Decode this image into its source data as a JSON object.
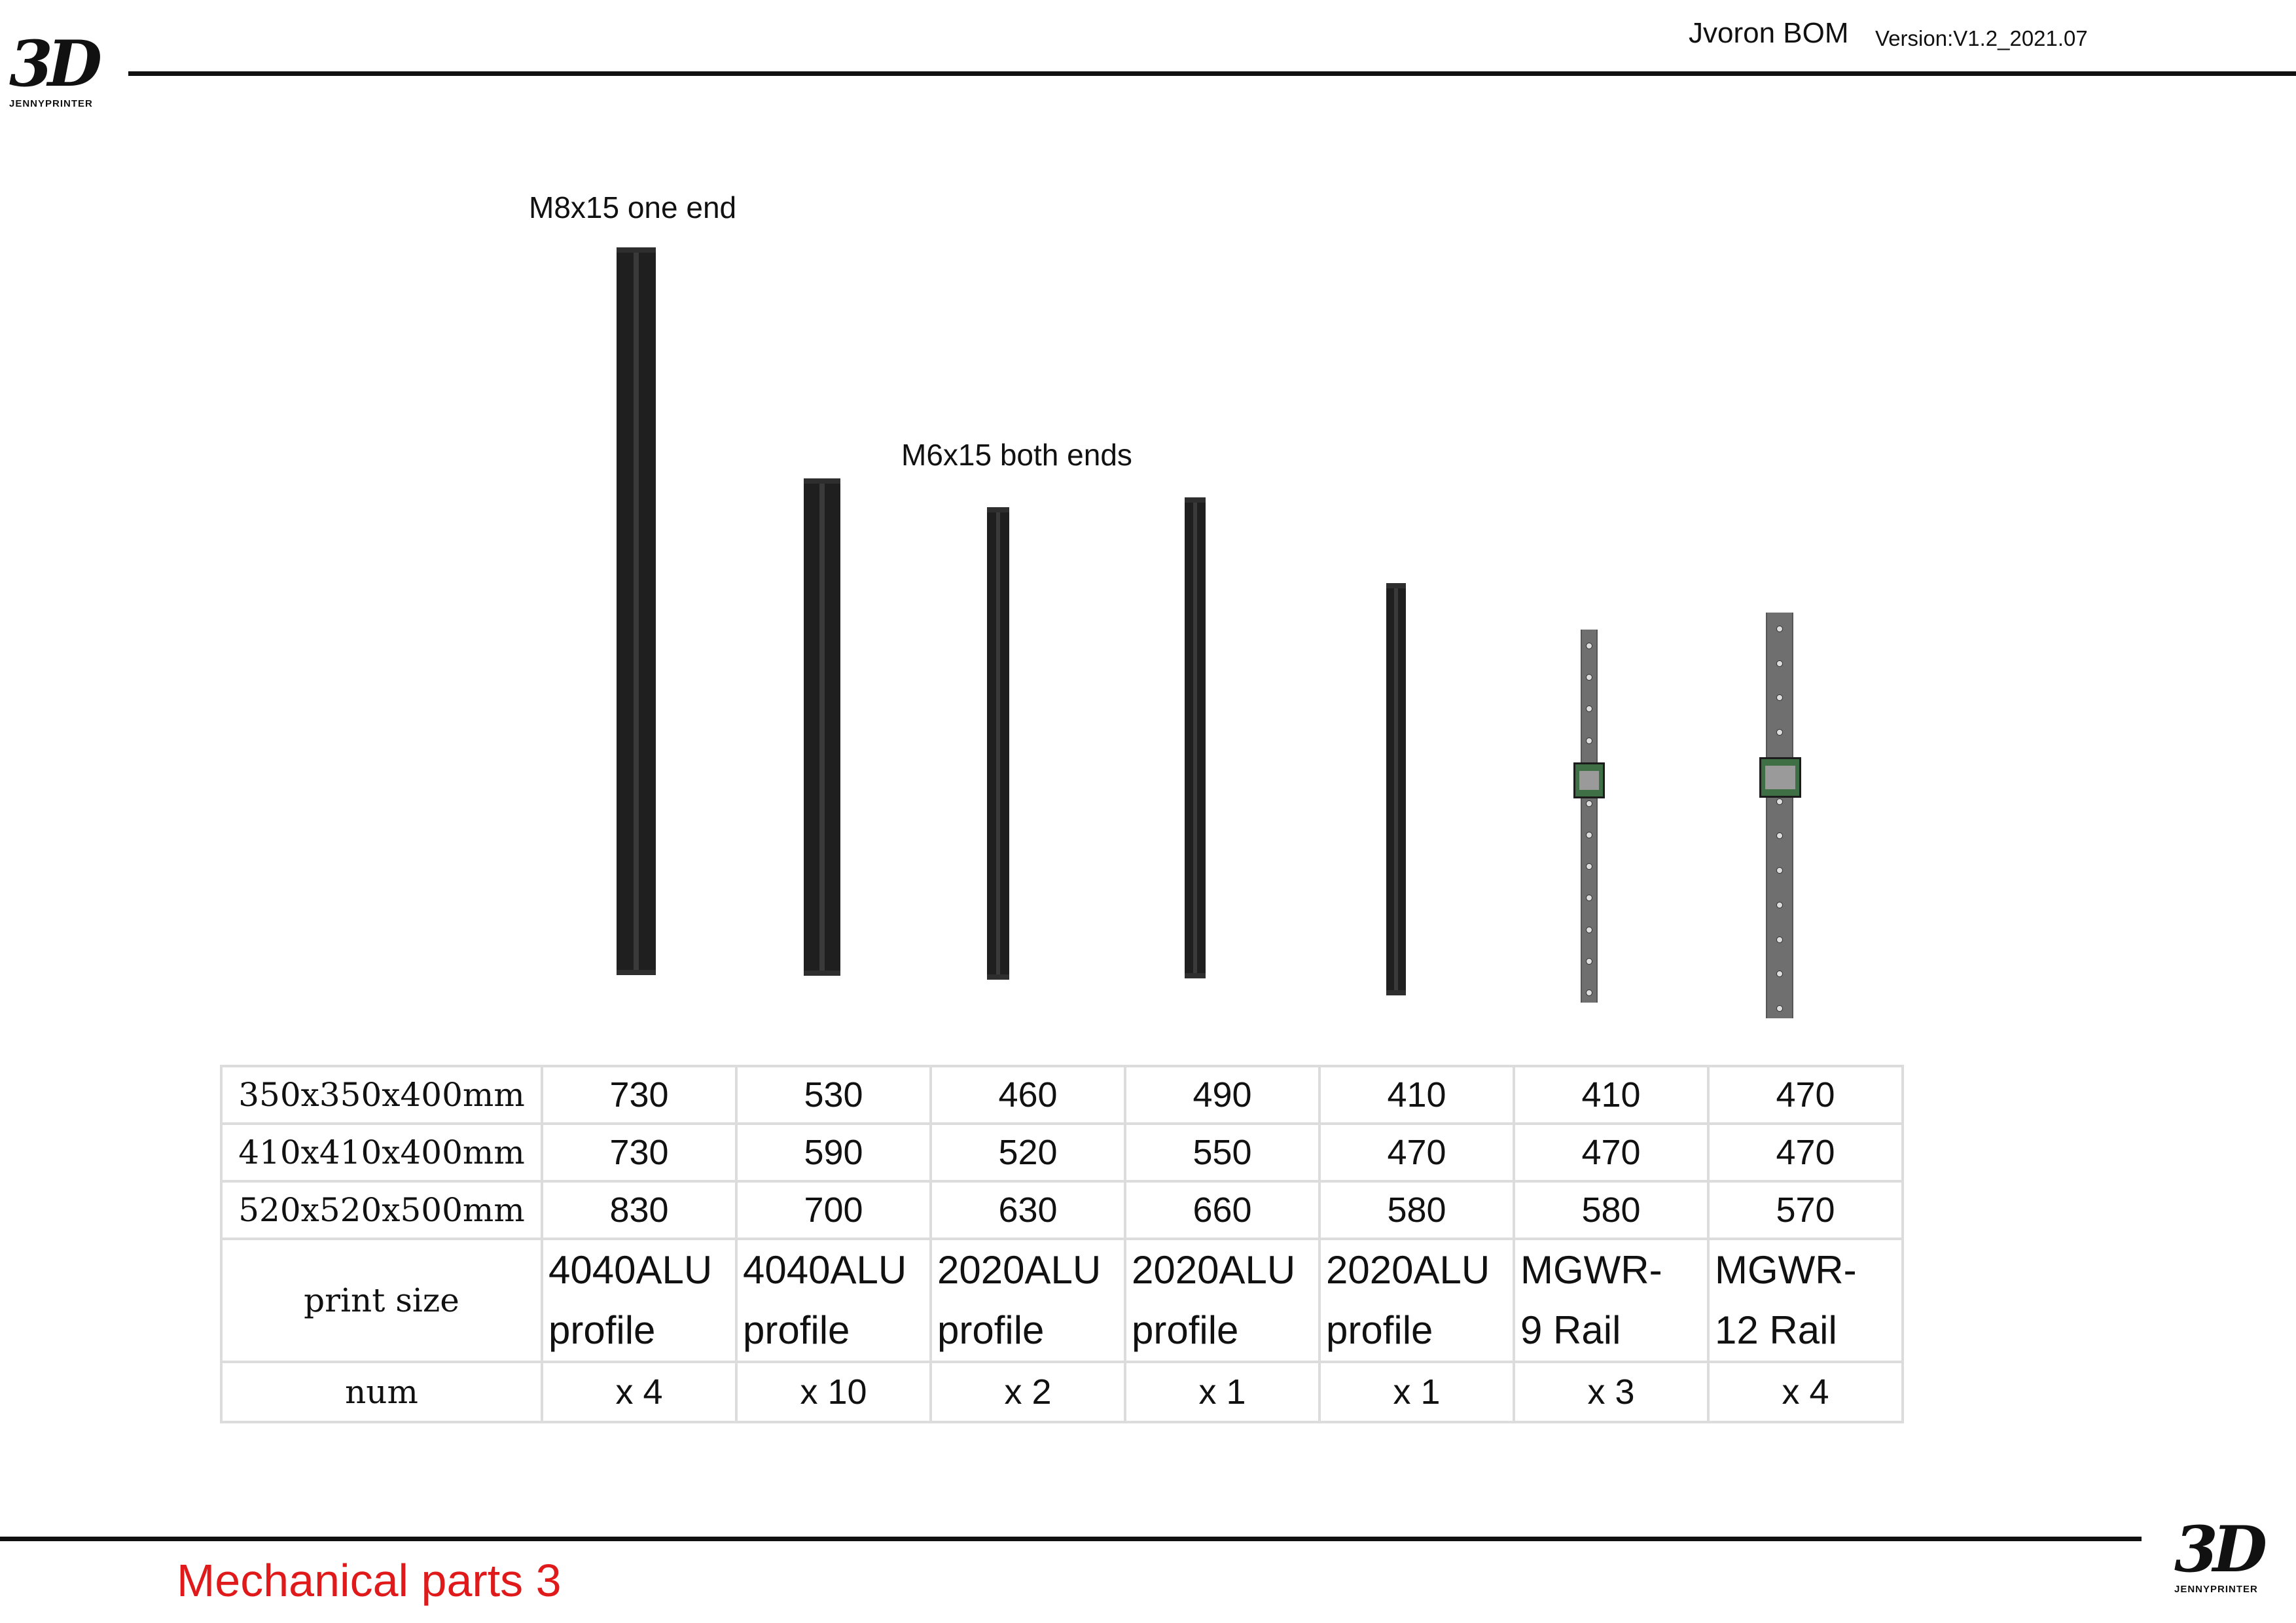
{
  "header": {
    "logo_mark": "3D",
    "logo_brand_light": "JENNY",
    "logo_brand_bold": "PRINTER",
    "title": "Jvoron BOM",
    "version": "Version:V1.2_2021.07"
  },
  "callouts": {
    "first": "M8x15 one end",
    "second": "M6x15 both ends"
  },
  "table": {
    "rows": [
      {
        "size": "350x350x400mm",
        "values": [
          "730",
          "530",
          "460",
          "490",
          "410",
          "410",
          "470"
        ]
      },
      {
        "size": "410x410x400mm",
        "values": [
          "730",
          "590",
          "520",
          "550",
          "470",
          "470",
          "470"
        ]
      },
      {
        "size": "520x520x500mm",
        "values": [
          "830",
          "700",
          "630",
          "660",
          "580",
          "580",
          "570"
        ]
      }
    ],
    "desc_label": "print size",
    "parts": [
      {
        "line1": "4040ALU",
        "line2": "profile"
      },
      {
        "line1": "4040ALU",
        "line2": "profile"
      },
      {
        "line1": "2020ALU",
        "line2": "profile"
      },
      {
        "line1": "2020ALU",
        "line2": "profile"
      },
      {
        "line1": "2020ALU",
        "line2": "profile"
      },
      {
        "line1": "MGWR-",
        "line2": "9 Rail"
      },
      {
        "line1": "MGWR-",
        "line2": "12 Rail"
      }
    ],
    "num_label": "num",
    "quantities": [
      "x 4",
      "x 10",
      "x 2",
      "x 1",
      "x 1",
      "x 3",
      "x 4"
    ]
  },
  "footer": {
    "title": "Mechanical parts 3"
  }
}
